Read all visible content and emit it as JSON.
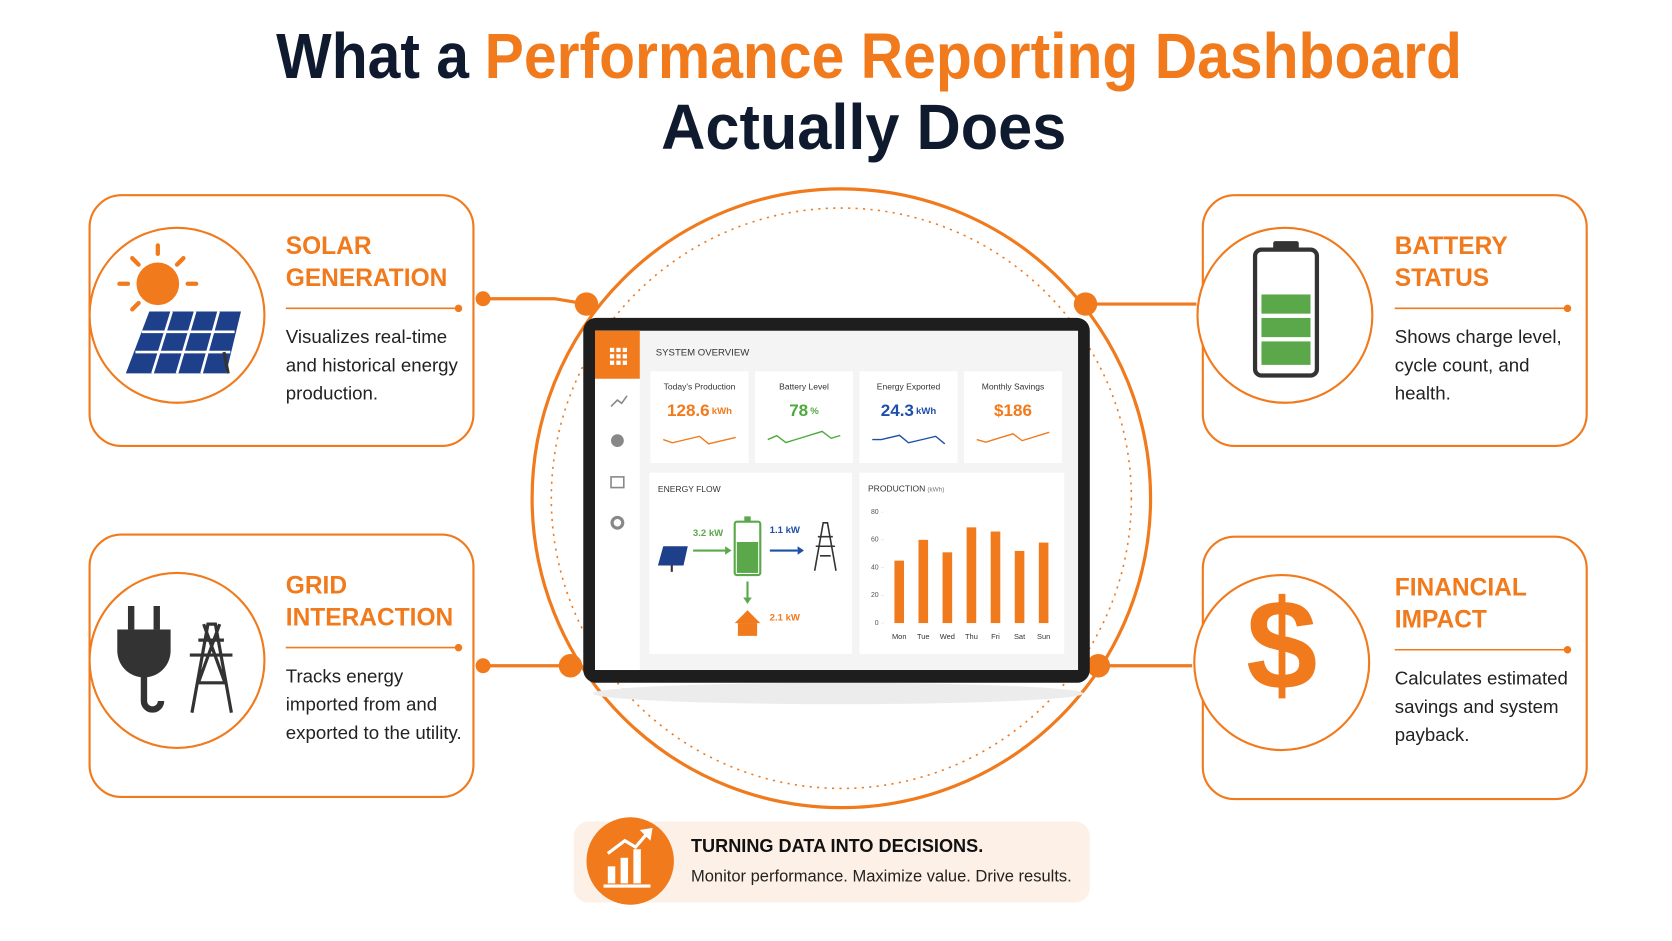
{
  "title": {
    "line1": [
      "What a",
      "Performance Reporting Dashboard"
    ],
    "line2": "Actually Does"
  },
  "cards": [
    {
      "title": [
        "SOLAR",
        "GENERATION"
      ],
      "description": [
        "Visualizes real-time",
        "and historical energy",
        "production."
      ]
    },
    {
      "title": [
        "GRID",
        "INTERACTION"
      ],
      "description": [
        "Tracks energy",
        "imported from and",
        "exported to the utility."
      ]
    },
    {
      "title": [
        "BATTERY",
        "STATUS"
      ],
      "description": [
        "Shows charge level,",
        "cycle count, and",
        "health."
      ]
    },
    {
      "title": [
        "FINANCIAL",
        "IMPACT"
      ],
      "description": [
        "Calculates estimated",
        "savings and system",
        "payback."
      ]
    }
  ],
  "dashboard": {
    "header": "SYSTEM OVERVIEW",
    "kpis": [
      {
        "label": "Today's Production",
        "value": "128.6",
        "unit": "kWh"
      },
      {
        "label": "Battery Level",
        "value": "78",
        "unit": "%"
      },
      {
        "label": "Energy Exported",
        "value": "24.3",
        "unit": "kWh"
      },
      {
        "label": "Monthly Savings",
        "value": "$186"
      }
    ],
    "energy_flow": {
      "title": "ENERGY FLOW",
      "solar": "3.2 kW",
      "export": "1.1 kW",
      "home": "2.1 kW"
    },
    "production": {
      "title": "PRODUCTION",
      "unit": "(kWh)",
      "days": [
        "Mon",
        "Tue",
        "Wed",
        "Thu",
        "Fri",
        "Sat",
        "Sun"
      ],
      "values": [
        45,
        60,
        51,
        69,
        66,
        52,
        58
      ],
      "ylim": [
        0,
        80
      ],
      "yticks": [
        0,
        20,
        40,
        60,
        80
      ]
    }
  },
  "banner": {
    "title": "TURNING DATA INTO DECISIONS.",
    "subtitle": "Monitor performance. Maximize value. Drive results."
  }
}
